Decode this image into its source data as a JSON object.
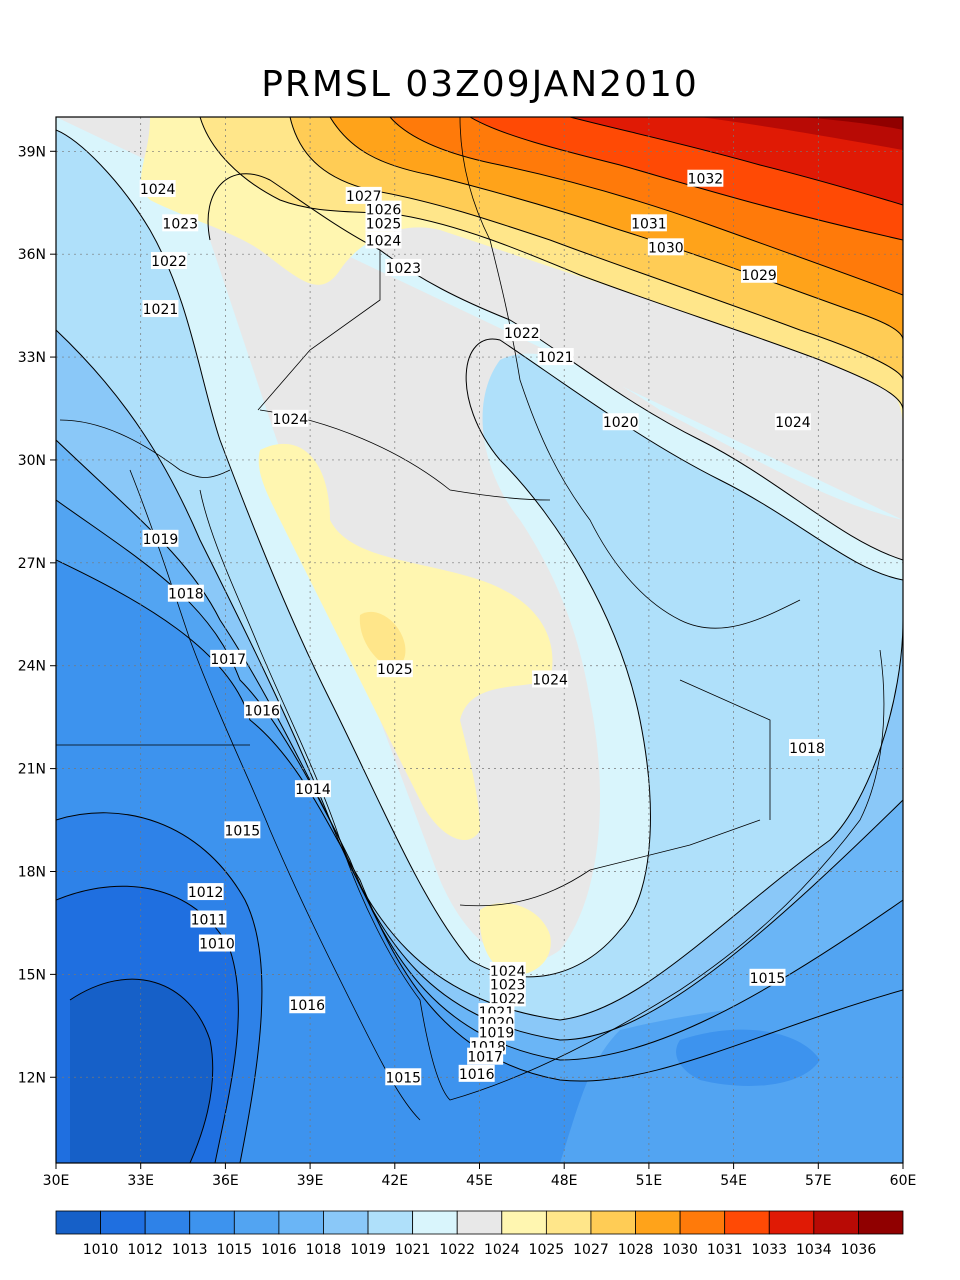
{
  "title": "PRMSL 03Z09JAN2010",
  "map": {
    "lon_range": [
      30,
      60
    ],
    "lat_range": [
      9.5,
      40
    ],
    "lon_ticks": [
      "30E",
      "33E",
      "36E",
      "39E",
      "42E",
      "45E",
      "48E",
      "51E",
      "54E",
      "57E",
      "60E"
    ],
    "lat_ticks": [
      "12N",
      "15N",
      "18N",
      "21N",
      "24N",
      "27N",
      "30N",
      "33N",
      "36N",
      "39N"
    ],
    "grid": true
  },
  "contour_labels": [
    {
      "text": "1024",
      "lon": 33.6,
      "lat": 37.9
    },
    {
      "text": "1023",
      "lon": 34.4,
      "lat": 36.9
    },
    {
      "text": "1022",
      "lon": 34.0,
      "lat": 35.8
    },
    {
      "text": "1021",
      "lon": 33.7,
      "lat": 34.4
    },
    {
      "text": "1027",
      "lon": 40.9,
      "lat": 37.7
    },
    {
      "text": "1026",
      "lon": 41.6,
      "lat": 37.3
    },
    {
      "text": "1025",
      "lon": 41.6,
      "lat": 36.9
    },
    {
      "text": "1024",
      "lon": 41.6,
      "lat": 36.4
    },
    {
      "text": "1023",
      "lon": 42.3,
      "lat": 35.6
    },
    {
      "text": "1032",
      "lon": 53.0,
      "lat": 38.2
    },
    {
      "text": "1031",
      "lon": 51.0,
      "lat": 36.9
    },
    {
      "text": "1030",
      "lon": 51.6,
      "lat": 36.2
    },
    {
      "text": "1029",
      "lon": 54.9,
      "lat": 35.4
    },
    {
      "text": "1022",
      "lon": 46.5,
      "lat": 33.7
    },
    {
      "text": "1021",
      "lon": 47.7,
      "lat": 33.0
    },
    {
      "text": "1020",
      "lon": 50.0,
      "lat": 31.1
    },
    {
      "text": "1024",
      "lon": 56.1,
      "lat": 31.1
    },
    {
      "text": "1024",
      "lon": 38.3,
      "lat": 31.2
    },
    {
      "text": "1019",
      "lon": 33.7,
      "lat": 27.7
    },
    {
      "text": "1018",
      "lon": 34.6,
      "lat": 26.1
    },
    {
      "text": "1025",
      "lon": 42.0,
      "lat": 23.9
    },
    {
      "text": "1024",
      "lon": 47.5,
      "lat": 23.6
    },
    {
      "text": "1017",
      "lon": 36.1,
      "lat": 24.2
    },
    {
      "text": "1016",
      "lon": 37.3,
      "lat": 22.7
    },
    {
      "text": "1018",
      "lon": 56.6,
      "lat": 21.6
    },
    {
      "text": "1014",
      "lon": 39.1,
      "lat": 20.4
    },
    {
      "text": "1015",
      "lon": 36.6,
      "lat": 19.2
    },
    {
      "text": "1012",
      "lon": 35.3,
      "lat": 17.4
    },
    {
      "text": "1011",
      "lon": 35.4,
      "lat": 16.6
    },
    {
      "text": "1010",
      "lon": 35.7,
      "lat": 15.9
    },
    {
      "text": "1024",
      "lon": 46.0,
      "lat": 15.1
    },
    {
      "text": "1023",
      "lon": 46.0,
      "lat": 14.7
    },
    {
      "text": "1022",
      "lon": 46.0,
      "lat": 14.3
    },
    {
      "text": "1021",
      "lon": 45.6,
      "lat": 13.9
    },
    {
      "text": "1020",
      "lon": 45.6,
      "lat": 13.6
    },
    {
      "text": "1019",
      "lon": 45.6,
      "lat": 13.3
    },
    {
      "text": "1018",
      "lon": 45.3,
      "lat": 12.9
    },
    {
      "text": "1017",
      "lon": 45.2,
      "lat": 12.6
    },
    {
      "text": "1016",
      "lon": 44.9,
      "lat": 12.1
    },
    {
      "text": "1016",
      "lon": 38.9,
      "lat": 14.1
    },
    {
      "text": "1015",
      "lon": 42.3,
      "lat": 12.0
    },
    {
      "text": "1015",
      "lon": 55.2,
      "lat": 14.9
    }
  ],
  "colorbar": {
    "labels": [
      "1010",
      "1012",
      "1013",
      "1015",
      "1016",
      "1018",
      "1019",
      "1021",
      "1022",
      "1024",
      "1025",
      "1027",
      "1028",
      "1030",
      "1031",
      "1033",
      "1034",
      "1036"
    ],
    "colors": [
      "#1660c8",
      "#1f6fe0",
      "#2e82e8",
      "#3d93ee",
      "#52a4f2",
      "#6ab5f6",
      "#8ac8f8",
      "#afe0fa",
      "#d9f5fc",
      "#e8e8e8",
      "#fff6b0",
      "#ffe68a",
      "#ffcc55",
      "#ffa31a",
      "#ff7a0a",
      "#ff4a05",
      "#e01a05",
      "#b80a05",
      "#900000"
    ]
  }
}
